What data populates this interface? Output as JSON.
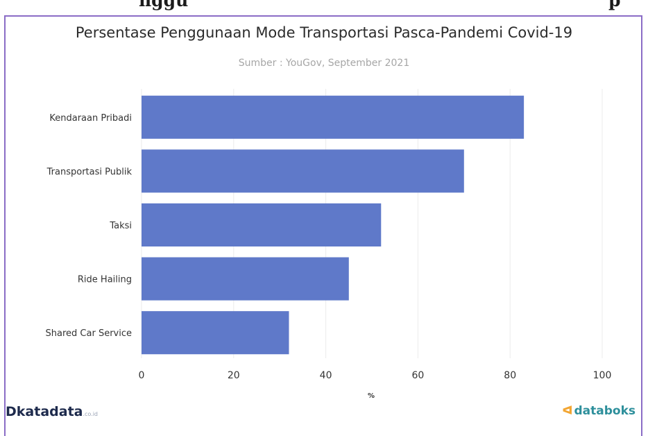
{
  "chart_data": {
    "type": "bar",
    "orientation": "horizontal",
    "title": "Persentase Penggunaan Mode Transportasi Pasca-Pandemi Covid-19",
    "subtitle": "Sumber : YouGov, September 2021",
    "categories": [
      "Kendaraan Pribadi",
      "Transportasi Publik",
      "Taksi",
      "Ride Hailing",
      "Shared Car Service"
    ],
    "values": [
      83,
      70,
      52,
      45,
      32
    ],
    "xlabel": "%",
    "ylabel": "",
    "xlim": [
      0,
      100
    ],
    "xticks": [
      0,
      20,
      40,
      60,
      80,
      100
    ],
    "grid": true,
    "bar_color": "#5f79c9"
  },
  "heading_fragment_left": "nggu",
  "heading_fragment_right": "p",
  "logos": {
    "left": "katadata",
    "left_suffix": ".co.id",
    "right": "databoks"
  }
}
